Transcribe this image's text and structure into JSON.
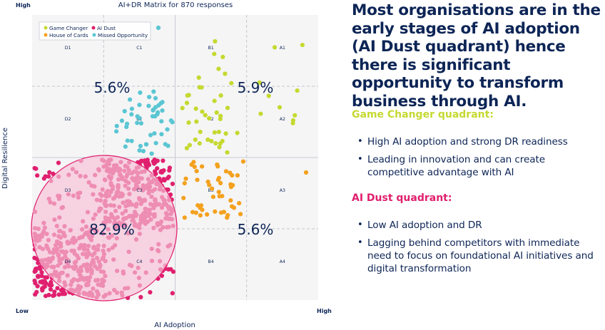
{
  "chart_data": {
    "type": "scatter",
    "title": "AI+DR Matrix for 870 responses",
    "total_responses": 870,
    "xlabel": "AI Adoption",
    "ylabel": "Digital Resilience",
    "x_axis_low": "Low",
    "x_axis_high": "High",
    "y_axis_high": "High",
    "legend": {
      "placement": "top-left",
      "entries": [
        {
          "name": "Game Changer",
          "color": "#c5d930"
        },
        {
          "name": "AI Dust",
          "color": "#e0206e"
        },
        {
          "name": "House of Cards",
          "color": "#f4a11e"
        },
        {
          "name": "Missed Opportunity",
          "color": "#5bc6d3"
        }
      ]
    },
    "grid_cells": {
      "columns": [
        "D",
        "C",
        "B",
        "A"
      ],
      "rows": [
        "1",
        "2",
        "3",
        "4"
      ],
      "labels": [
        [
          "D1",
          "C1",
          "B1",
          "A1"
        ],
        [
          "D2",
          "C2",
          "B2",
          "A2"
        ],
        [
          "D3",
          "C3",
          "B3",
          "A3"
        ],
        [
          "D4",
          "C4",
          "B4",
          "A4"
        ]
      ]
    },
    "quadrants": [
      {
        "name": "Missed Opportunity",
        "position": "top-left",
        "percent_label": "5.6%",
        "percent": 5.6,
        "color": "#5bc6d3",
        "approx_points": 49
      },
      {
        "name": "Game Changer",
        "position": "top-right",
        "percent_label": "5.9%",
        "percent": 5.9,
        "color": "#c5d930",
        "approx_points": 51
      },
      {
        "name": "AI Dust",
        "position": "bottom-left",
        "percent_label": "82.9%",
        "percent": 82.9,
        "color": "#e0206e",
        "approx_points": 721
      },
      {
        "name": "House of Cards",
        "position": "bottom-right",
        "percent_label": "5.6%",
        "percent": 5.6,
        "color": "#f4a11e",
        "approx_points": 49
      }
    ],
    "highlight": {
      "quadrant": "AI Dust",
      "shape": "circle",
      "fill": "#f7c6da",
      "stroke": "#e0206e"
    }
  },
  "right_panel": {
    "headline": "Most organisations are in the early stages of AI adoption (AI Dust quadrant) hence there is significant opportunity to transform business through AI.",
    "sections": [
      {
        "title": "Game Changer quadrant:",
        "color": "#c5d930",
        "bullets": [
          "High AI adoption and strong DR readiness",
          "Leading in innovation and can create competitive advantage with AI"
        ]
      },
      {
        "title": "AI Dust quadrant:",
        "color": "#e0206e",
        "bullets": [
          "Low AI adoption and DR",
          "Lagging behind competitors with immediate need to focus on foundational AI initiatives and digital transformation"
        ]
      }
    ]
  },
  "colors": {
    "text_dark": "#0d2556",
    "plot_bg": "#f5f5f6",
    "grid_solid": "#c9cbd3",
    "grid_dashed": "#b5b8c2"
  }
}
